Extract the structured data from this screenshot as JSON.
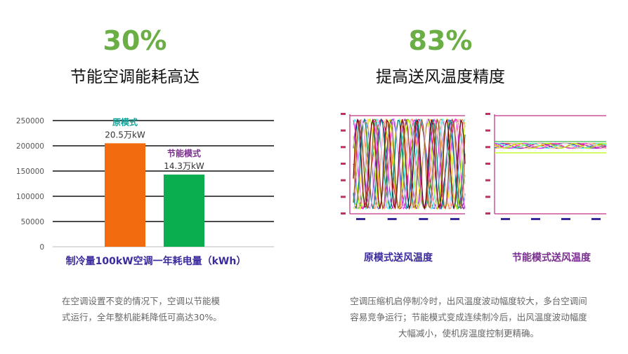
{
  "left": {
    "percent": "30%",
    "title": "节能空调能耗高达",
    "description_lines": [
      "在空调设置不变的情况下，空调以节能模",
      "式运行，全年整机能耗降低可高达30%。"
    ]
  },
  "right": {
    "percent": "83%",
    "title": "提高送风温度精度",
    "description_lines": [
      "空调压缩机启停制冷时，出风温度波动幅度较大，多台空调间",
      "容易竞争运行；节能模式变成连续制冷后，出风温度波动幅度",
      "大幅减小，使机房温度控制更精确。"
    ],
    "original_caption": "原模式送风温度",
    "energy_caption": "节能模式送风温度"
  },
  "colors": {
    "accent": "#6aae45",
    "bar_original": "#f26b0f",
    "bar_energy": "#0aae4f",
    "label_original": "#11a39a",
    "label_energy": "#7a2e8e",
    "axis_label": "#3a2b9c"
  },
  "chart_data": [
    {
      "type": "bar",
      "categories": [
        "原模式",
        "节能模式"
      ],
      "values": [
        205000,
        143000
      ],
      "data_labels": [
        "20.5万kW",
        "14.3万kW"
      ],
      "yticks": [
        "250000",
        "200000",
        "150000",
        "100000",
        "50000",
        "0"
      ],
      "ylim": [
        0,
        250000
      ],
      "xlabel": "制冷量100kW空调一年耗电量（kWh）",
      "grid": true
    },
    {
      "type": "line",
      "caption": "原模式送风温度",
      "ylim": [
        0,
        1
      ],
      "series_count": 14,
      "amplitude": 0.9,
      "oscillation": "wide"
    },
    {
      "type": "line",
      "caption": "节能模式送风温度",
      "ylim": [
        0,
        1
      ],
      "series_count": 10,
      "amplitude": 0.05,
      "oscillation": "narrow"
    }
  ]
}
